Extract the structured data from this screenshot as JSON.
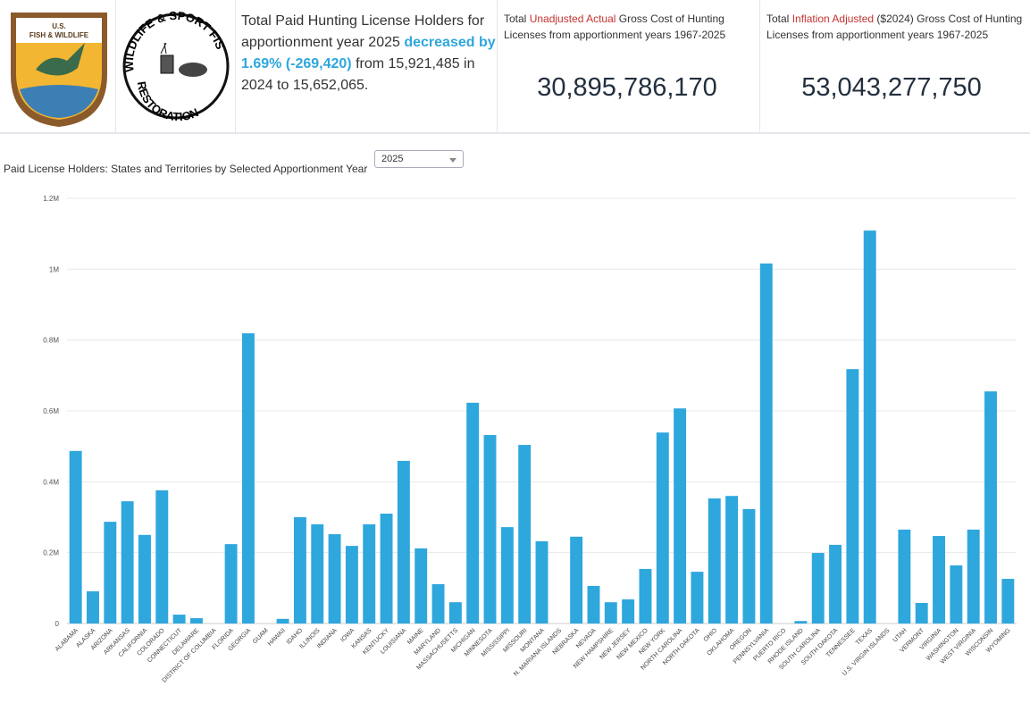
{
  "logos": {
    "fws": "U.S. FISH & WILDLIFE SERVICE — DEPARTMENT OF THE INTERIOR",
    "wsfr": "WILDLIFE & SPORT FISH RESTORATION"
  },
  "kpi": {
    "line1": "Total Paid Hunting License Holders for apportionment year 2025",
    "highlight": "decreased by 1.69% (-269,420)",
    "line2": " from 15,921,485 in 2024 to 15,652,065."
  },
  "unadjusted": {
    "pre": "Total ",
    "red": "Unadjusted Actual",
    "post": " Gross Cost of Hunting Licenses from apportionment years 1967-2025",
    "value": "30,895,786,170"
  },
  "adjusted": {
    "pre": "Total ",
    "red": "Inflation Adjusted",
    "post": " ($2024) Gross Cost of Hunting Licenses from apportionment years 1967-2025",
    "value": "53,043,277,750"
  },
  "controls": {
    "chart_title": "Paid License Holders: States and Territories by Selected Apportionment Year",
    "year_selected": "2025"
  },
  "colors": {
    "bar": "#2ea7dd",
    "accent_red": "#c4332f"
  },
  "chart_data": {
    "type": "bar",
    "title": "Paid License Holders: States and Territories by Selected Apportionment Year",
    "ylim": [
      0,
      1200000
    ],
    "yticks": [
      0,
      200000,
      400000,
      600000,
      800000,
      1000000,
      1200000
    ],
    "ytick_labels": [
      "0",
      "0.2M",
      "0.4M",
      "0.6M",
      "0.8M",
      "1M",
      "1.2M"
    ],
    "grid": true,
    "categories": [
      "ALABAMA",
      "ALASKA",
      "ARIZONA",
      "ARKANSAS",
      "CALIFORNIA",
      "COLORADO",
      "CONNECTICUT",
      "DELAWARE",
      "DISTRICT OF COLUMBIA",
      "FLORIDA",
      "GEORGIA",
      "GUAM",
      "HAWAII",
      "IDAHO",
      "ILLINOIS",
      "INDIANA",
      "IOWA",
      "KANSAS",
      "KENTUCKY",
      "LOUISIANA",
      "MAINE",
      "MARYLAND",
      "MASSACHUSETTS",
      "MICHIGAN",
      "MINNESOTA",
      "MISSISSIPPI",
      "MISSOURI",
      "MONTANA",
      "N. MARIANA ISLANDS",
      "NEBRASKA",
      "NEVADA",
      "NEW HAMPSHIRE",
      "NEW JERSEY",
      "NEW MEXICO",
      "NEW YORK",
      "NORTH CAROLINA",
      "NORTH DAKOTA",
      "OHIO",
      "OKLAHOMA",
      "OREGON",
      "PENNSYLVANIA",
      "PUERTO RICO",
      "RHODE ISLAND",
      "SOUTH CAROLINA",
      "SOUTH DAKOTA",
      "TENNESSEE",
      "TEXAS",
      "U.S. VIRGIN ISLANDS",
      "UTAH",
      "VERMONT",
      "VIRGINIA",
      "WASHINGTON",
      "WEST VIRGINIA",
      "WISCONSIN",
      "WYOMING"
    ],
    "values": [
      487000,
      91000,
      287000,
      345000,
      250000,
      376000,
      25000,
      15000,
      0,
      224000,
      819000,
      0,
      13000,
      300000,
      280000,
      252000,
      219000,
      280000,
      310000,
      459000,
      212000,
      111000,
      60000,
      623000,
      532000,
      272000,
      504000,
      232000,
      0,
      245000,
      106000,
      60000,
      68000,
      154000,
      539000,
      607000,
      146000,
      353000,
      360000,
      323000,
      1016000,
      0,
      7000,
      199000,
      222000,
      718000,
      1109000,
      0,
      265000,
      58000,
      247000,
      164000,
      265000,
      655000,
      126000
    ]
  }
}
